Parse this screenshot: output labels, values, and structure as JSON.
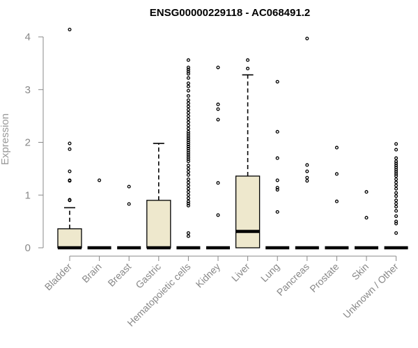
{
  "chart_data": {
    "type": "box",
    "title": "ENSG00000229118 - AC068491.2",
    "xlabel": "",
    "ylabel": "Expression",
    "ylim": [
      0,
      4.2
    ],
    "yticks": [
      0,
      1,
      2,
      3,
      4
    ],
    "box_fill": "#EEE8CD",
    "box_stroke": "#000000",
    "categories": [
      "Bladder",
      "Brain",
      "Breast",
      "Gastric",
      "Hematopoietic cells",
      "Kidney",
      "Liver",
      "Lung",
      "Pancreas",
      "Prostate",
      "Skin",
      "Unknown / Other"
    ],
    "boxes": [
      {
        "name": "Bladder",
        "q1": 0,
        "median": 0,
        "q3": 0.36,
        "whisker_low": 0,
        "whisker_high": 0.76,
        "outliers": [
          4.14,
          1.98,
          1.87,
          1.45,
          1.28,
          1.27,
          0.91,
          0.9
        ]
      },
      {
        "name": "Brain",
        "q1": 0,
        "median": 0,
        "q3": 0,
        "whisker_low": 0,
        "whisker_high": 0,
        "outliers": [
          1.28
        ]
      },
      {
        "name": "Breast",
        "q1": 0,
        "median": 0,
        "q3": 0,
        "whisker_low": 0,
        "whisker_high": 0,
        "outliers": [
          1.16,
          0.83
        ]
      },
      {
        "name": "Gastric",
        "q1": 0,
        "median": 0,
        "q3": 0.9,
        "whisker_low": 0,
        "whisker_high": 1.98,
        "outliers": []
      },
      {
        "name": "Hematopoietic cells",
        "q1": 0,
        "median": 0,
        "q3": 0,
        "whisker_low": 0,
        "whisker_high": 0,
        "outliers": [
          3.56,
          3.42,
          3.38,
          3.34,
          3.3,
          3.22,
          3.12,
          3.06,
          2.98,
          2.88,
          2.8,
          2.74,
          2.68,
          2.62,
          2.56,
          2.5,
          2.44,
          2.38,
          2.32,
          2.26,
          2.2,
          2.16,
          2.12,
          2.08,
          2.04,
          2.0,
          1.96,
          1.92,
          1.88,
          1.84,
          1.8,
          1.76,
          1.72,
          1.68,
          1.64,
          1.56,
          1.5,
          1.44,
          1.38,
          1.3,
          1.24,
          1.18,
          1.12,
          1.06,
          1.0,
          0.94,
          0.88,
          0.84,
          0.8,
          0.28,
          0.22
        ]
      },
      {
        "name": "Kidney",
        "q1": 0,
        "median": 0,
        "q3": 0,
        "whisker_low": 0,
        "whisker_high": 0,
        "outliers": [
          3.42,
          2.72,
          2.63,
          2.43,
          1.23,
          0.62
        ]
      },
      {
        "name": "Liver",
        "q1": 0,
        "median": 0.31,
        "q3": 1.36,
        "whisker_low": 0,
        "whisker_high": 3.28,
        "outliers": [
          3.56,
          3.4
        ]
      },
      {
        "name": "Lung",
        "q1": 0,
        "median": 0,
        "q3": 0,
        "whisker_low": 0,
        "whisker_high": 0,
        "outliers": [
          3.15,
          2.2,
          1.7,
          1.28,
          1.14,
          1.1,
          0.68
        ]
      },
      {
        "name": "Pancreas",
        "q1": 0,
        "median": 0,
        "q3": 0,
        "whisker_low": 0,
        "whisker_high": 0,
        "outliers": [
          3.97,
          1.57,
          1.45,
          1.33,
          1.27
        ]
      },
      {
        "name": "Prostate",
        "q1": 0,
        "median": 0,
        "q3": 0,
        "whisker_low": 0,
        "whisker_high": 0,
        "outliers": [
          1.9,
          1.4,
          0.88
        ]
      },
      {
        "name": "Skin",
        "q1": 0,
        "median": 0,
        "q3": 0,
        "whisker_low": 0,
        "whisker_high": 0,
        "outliers": [
          1.06,
          0.57
        ]
      },
      {
        "name": "Unknown / Other",
        "q1": 0,
        "median": 0,
        "q3": 0,
        "whisker_low": 0,
        "whisker_high": 0,
        "outliers": [
          1.97,
          1.86,
          1.7,
          1.64,
          1.6,
          1.56,
          1.52,
          1.48,
          1.44,
          1.4,
          1.36,
          1.3,
          1.24,
          1.18,
          1.12,
          1.04,
          0.98,
          0.9,
          0.84,
          0.78,
          0.7,
          0.6,
          0.5,
          0.46,
          0.28
        ]
      }
    ]
  }
}
